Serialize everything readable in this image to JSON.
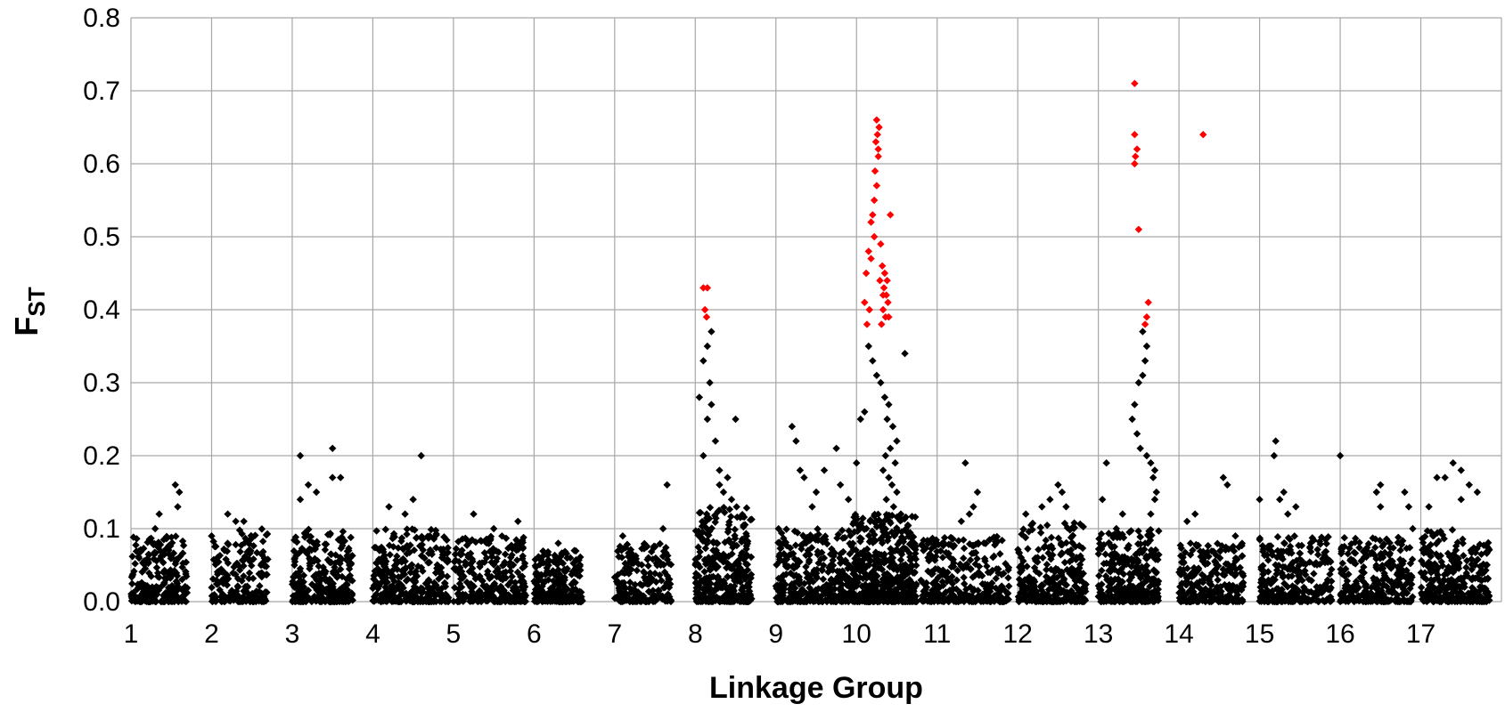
{
  "chart_data": {
    "type": "scatter",
    "title": "",
    "xlabel": "Linkage Group",
    "ylabel": "F",
    "ylabel_subscript": "ST",
    "ylim": [
      0,
      0.8
    ],
    "y_ticks": [
      "0.0",
      "0.1",
      "0.2",
      "0.3",
      "0.4",
      "0.5",
      "0.6",
      "0.7",
      "0.8"
    ],
    "x_ticks": [
      "1",
      "2",
      "3",
      "4",
      "5",
      "6",
      "7",
      "8",
      "9",
      "10",
      "11",
      "12",
      "13",
      "14",
      "15",
      "16",
      "17"
    ],
    "xlim": [
      1,
      18
    ],
    "grid": true,
    "legend": "none",
    "colors": {
      "background_points": "#000000",
      "outlier_points": "#ff0000",
      "grid": "#a6a6a6"
    },
    "series": [
      {
        "color": "#ff0000",
        "points": [
          [
            8.1,
            0.43
          ],
          [
            8.15,
            0.43
          ],
          [
            8.12,
            0.4
          ],
          [
            8.14,
            0.39
          ],
          [
            10.15,
            0.48
          ],
          [
            10.12,
            0.45
          ],
          [
            10.18,
            0.47
          ],
          [
            10.1,
            0.41
          ],
          [
            10.13,
            0.38
          ],
          [
            10.16,
            0.4
          ],
          [
            10.2,
            0.53
          ],
          [
            10.22,
            0.55
          ],
          [
            10.18,
            0.52
          ],
          [
            10.25,
            0.57
          ],
          [
            10.23,
            0.59
          ],
          [
            10.27,
            0.61
          ],
          [
            10.24,
            0.63
          ],
          [
            10.26,
            0.64
          ],
          [
            10.28,
            0.65
          ],
          [
            10.25,
            0.66
          ],
          [
            10.27,
            0.62
          ],
          [
            10.22,
            0.5
          ],
          [
            10.3,
            0.49
          ],
          [
            10.32,
            0.46
          ],
          [
            10.35,
            0.45
          ],
          [
            10.38,
            0.44
          ],
          [
            10.34,
            0.43
          ],
          [
            10.37,
            0.42
          ],
          [
            10.33,
            0.4
          ],
          [
            10.39,
            0.41
          ],
          [
            10.36,
            0.39
          ],
          [
            10.31,
            0.38
          ],
          [
            10.4,
            0.39
          ],
          [
            10.42,
            0.53
          ],
          [
            10.29,
            0.44
          ],
          [
            10.33,
            0.42
          ],
          [
            13.45,
            0.71
          ],
          [
            13.45,
            0.64
          ],
          [
            13.46,
            0.61
          ],
          [
            13.45,
            0.6
          ],
          [
            13.48,
            0.62
          ],
          [
            13.5,
            0.51
          ],
          [
            13.62,
            0.41
          ],
          [
            13.6,
            0.39
          ],
          [
            13.58,
            0.38
          ],
          [
            14.3,
            0.64
          ]
        ]
      },
      {
        "color": "#000000",
        "clusters": [
          {
            "x0": 1.0,
            "x1": 1.7,
            "n": 260,
            "ymax": 0.09,
            "extra": [
              [
                1.55,
                0.16
              ],
              [
                1.6,
                0.15
              ],
              [
                1.35,
                0.12
              ],
              [
                1.58,
                0.13
              ],
              [
                1.3,
                0.1
              ]
            ]
          },
          {
            "x0": 2.0,
            "x1": 2.7,
            "n": 200,
            "ymax": 0.1,
            "extra": [
              [
                2.2,
                0.12
              ],
              [
                2.3,
                0.11
              ],
              [
                2.0,
                0.09
              ],
              [
                2.4,
                0.11
              ]
            ]
          },
          {
            "x0": 3.0,
            "x1": 3.75,
            "n": 280,
            "ymax": 0.1,
            "extra": [
              [
                3.1,
                0.2
              ],
              [
                3.5,
                0.21
              ],
              [
                3.5,
                0.17
              ],
              [
                3.2,
                0.16
              ],
              [
                3.6,
                0.17
              ],
              [
                3.1,
                0.14
              ],
              [
                3.3,
                0.15
              ]
            ]
          },
          {
            "x0": 4.0,
            "x1": 4.95,
            "n": 320,
            "ymax": 0.1,
            "extra": [
              [
                4.6,
                0.2
              ],
              [
                4.5,
                0.14
              ],
              [
                4.2,
                0.13
              ],
              [
                4.4,
                0.12
              ]
            ]
          },
          {
            "x0": 5.0,
            "x1": 5.9,
            "n": 280,
            "ymax": 0.09,
            "extra": [
              [
                5.25,
                0.12
              ],
              [
                5.8,
                0.11
              ],
              [
                5.5,
                0.1
              ]
            ]
          },
          {
            "x0": 6.0,
            "x1": 6.6,
            "n": 220,
            "ymax": 0.07,
            "extra": [
              [
                6.3,
                0.08
              ],
              [
                6.5,
                0.07
              ]
            ]
          },
          {
            "x0": 7.0,
            "x1": 7.7,
            "n": 200,
            "ymax": 0.08,
            "extra": [
              [
                7.65,
                0.16
              ],
              [
                7.6,
                0.1
              ],
              [
                7.1,
                0.09
              ]
            ]
          },
          {
            "x0": 8.0,
            "x1": 8.7,
            "n": 360,
            "ymax": 0.13,
            "extra": [
              [
                8.2,
                0.37
              ],
              [
                8.15,
                0.35
              ],
              [
                8.1,
                0.33
              ],
              [
                8.18,
                0.3
              ],
              [
                8.05,
                0.28
              ],
              [
                8.2,
                0.27
              ],
              [
                8.15,
                0.25
              ],
              [
                8.25,
                0.22
              ],
              [
                8.1,
                0.2
              ],
              [
                8.3,
                0.18
              ],
              [
                8.4,
                0.17
              ],
              [
                8.5,
                0.25
              ],
              [
                8.35,
                0.15
              ],
              [
                8.45,
                0.14
              ],
              [
                8.3,
                0.16
              ]
            ]
          },
          {
            "x0": 9.0,
            "x1": 9.95,
            "n": 340,
            "ymax": 0.1,
            "extra": [
              [
                9.2,
                0.24
              ],
              [
                9.25,
                0.22
              ],
              [
                9.75,
                0.21
              ],
              [
                9.3,
                0.18
              ],
              [
                9.35,
                0.17
              ],
              [
                9.6,
                0.18
              ],
              [
                9.5,
                0.15
              ],
              [
                9.8,
                0.16
              ],
              [
                9.9,
                0.14
              ],
              [
                9.45,
                0.13
              ]
            ]
          },
          {
            "x0": 9.95,
            "x1": 10.75,
            "n": 520,
            "ymax": 0.12,
            "extra": [
              [
                10.1,
                0.26
              ],
              [
                10.05,
                0.25
              ],
              [
                10.15,
                0.35
              ],
              [
                10.2,
                0.33
              ],
              [
                10.25,
                0.31
              ],
              [
                10.3,
                0.3
              ],
              [
                10.35,
                0.28
              ],
              [
                10.4,
                0.27
              ],
              [
                10.38,
                0.25
              ],
              [
                10.45,
                0.24
              ],
              [
                10.5,
                0.22
              ],
              [
                10.42,
                0.21
              ],
              [
                10.36,
                0.2
              ],
              [
                10.48,
                0.19
              ],
              [
                10.33,
                0.18
              ],
              [
                10.4,
                0.17
              ],
              [
                10.44,
                0.16
              ],
              [
                10.5,
                0.15
              ],
              [
                10.37,
                0.14
              ],
              [
                10.46,
                0.13
              ],
              [
                10.6,
                0.34
              ],
              [
                10.0,
                0.19
              ],
              [
                10.55,
                0.12
              ]
            ]
          },
          {
            "x0": 10.8,
            "x1": 11.9,
            "n": 300,
            "ymax": 0.09,
            "extra": [
              [
                11.35,
                0.19
              ],
              [
                11.5,
                0.15
              ],
              [
                11.45,
                0.13
              ],
              [
                11.4,
                0.12
              ],
              [
                11.3,
                0.11
              ]
            ]
          },
          {
            "x0": 12.0,
            "x1": 12.85,
            "n": 320,
            "ymax": 0.11,
            "extra": [
              [
                12.5,
                0.16
              ],
              [
                12.55,
                0.15
              ],
              [
                12.4,
                0.14
              ],
              [
                12.3,
                0.13
              ],
              [
                12.6,
                0.13
              ],
              [
                12.1,
                0.12
              ]
            ]
          },
          {
            "x0": 13.0,
            "x1": 13.75,
            "n": 300,
            "ymax": 0.1,
            "extra": [
              [
                13.55,
                0.37
              ],
              [
                13.6,
                0.35
              ],
              [
                13.58,
                0.33
              ],
              [
                13.55,
                0.31
              ],
              [
                13.5,
                0.3
              ],
              [
                13.45,
                0.27
              ],
              [
                13.42,
                0.25
              ],
              [
                13.48,
                0.23
              ],
              [
                13.52,
                0.21
              ],
              [
                13.6,
                0.2
              ],
              [
                13.65,
                0.19
              ],
              [
                13.7,
                0.18
              ],
              [
                13.68,
                0.17
              ],
              [
                13.72,
                0.15
              ],
              [
                13.7,
                0.14
              ],
              [
                13.1,
                0.19
              ],
              [
                13.05,
                0.14
              ],
              [
                13.3,
                0.12
              ],
              [
                13.65,
                0.12
              ],
              [
                13.58,
                0.08
              ]
            ]
          },
          {
            "x0": 14.0,
            "x1": 14.8,
            "n": 260,
            "ymax": 0.08,
            "extra": [
              [
                14.55,
                0.17
              ],
              [
                14.6,
                0.16
              ],
              [
                14.2,
                0.12
              ],
              [
                14.1,
                0.11
              ],
              [
                14.7,
                0.09
              ]
            ]
          },
          {
            "x0": 15.0,
            "x1": 15.9,
            "n": 280,
            "ymax": 0.09,
            "extra": [
              [
                15.2,
                0.22
              ],
              [
                15.18,
                0.2
              ],
              [
                15.3,
                0.15
              ],
              [
                15.25,
                0.14
              ],
              [
                15.0,
                0.14
              ],
              [
                15.45,
                0.13
              ],
              [
                15.35,
                0.12
              ]
            ]
          },
          {
            "x0": 16.0,
            "x1": 16.9,
            "n": 280,
            "ymax": 0.09,
            "extra": [
              [
                16.0,
                0.2
              ],
              [
                16.5,
                0.16
              ],
              [
                16.45,
                0.15
              ],
              [
                16.8,
                0.15
              ],
              [
                16.85,
                0.13
              ],
              [
                16.9,
                0.1
              ],
              [
                16.5,
                0.13
              ]
            ]
          },
          {
            "x0": 17.0,
            "x1": 17.85,
            "n": 320,
            "ymax": 0.1,
            "extra": [
              [
                17.4,
                0.19
              ],
              [
                17.5,
                0.18
              ],
              [
                17.3,
                0.17
              ],
              [
                17.2,
                0.17
              ],
              [
                17.6,
                0.16
              ],
              [
                17.7,
                0.15
              ],
              [
                17.5,
                0.14
              ],
              [
                17.1,
                0.13
              ]
            ]
          }
        ]
      }
    ]
  }
}
